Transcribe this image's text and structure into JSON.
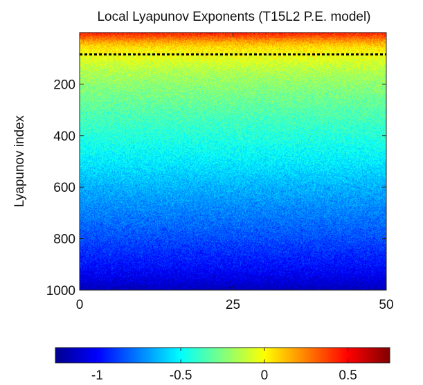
{
  "chart_data": {
    "type": "heatmap",
    "title": "Local Lyapunov Exponents (T15L2 P.E. model)",
    "xlabel": "",
    "ylabel": "Lyapunov index",
    "xlim": [
      0,
      50
    ],
    "ylim": [
      0,
      1000
    ],
    "y_axis_inverted": true,
    "x_ticks": [
      0,
      25,
      50
    ],
    "y_ticks": [
      200,
      400,
      600,
      800,
      1000
    ],
    "value_range": [
      -1.25,
      0.75
    ],
    "colorbar": {
      "orientation": "horizontal",
      "placement": "below",
      "ticks": [
        -1,
        -0.5,
        0,
        0.5
      ]
    },
    "colormap": [
      "#00008f",
      "#0000ff",
      "#0080ff",
      "#00ffff",
      "#80ff80",
      "#ffff00",
      "#ff8000",
      "#ff0000",
      "#800000"
    ],
    "mean_exponent_profile": {
      "index": [
        1,
        20,
        40,
        60,
        80,
        100,
        150,
        200,
        300,
        400,
        500,
        600,
        700,
        800,
        900,
        950,
        1000
      ],
      "value": [
        0.45,
        0.3,
        0.15,
        0.05,
        0.0,
        -0.05,
        -0.15,
        -0.22,
        -0.33,
        -0.43,
        -0.53,
        -0.65,
        -0.75,
        -0.85,
        -0.97,
        -1.05,
        -1.15
      ]
    },
    "noise_amplitude": 0.18,
    "reference_line": {
      "style": "dotted",
      "color": "#000000",
      "index": 85
    }
  }
}
